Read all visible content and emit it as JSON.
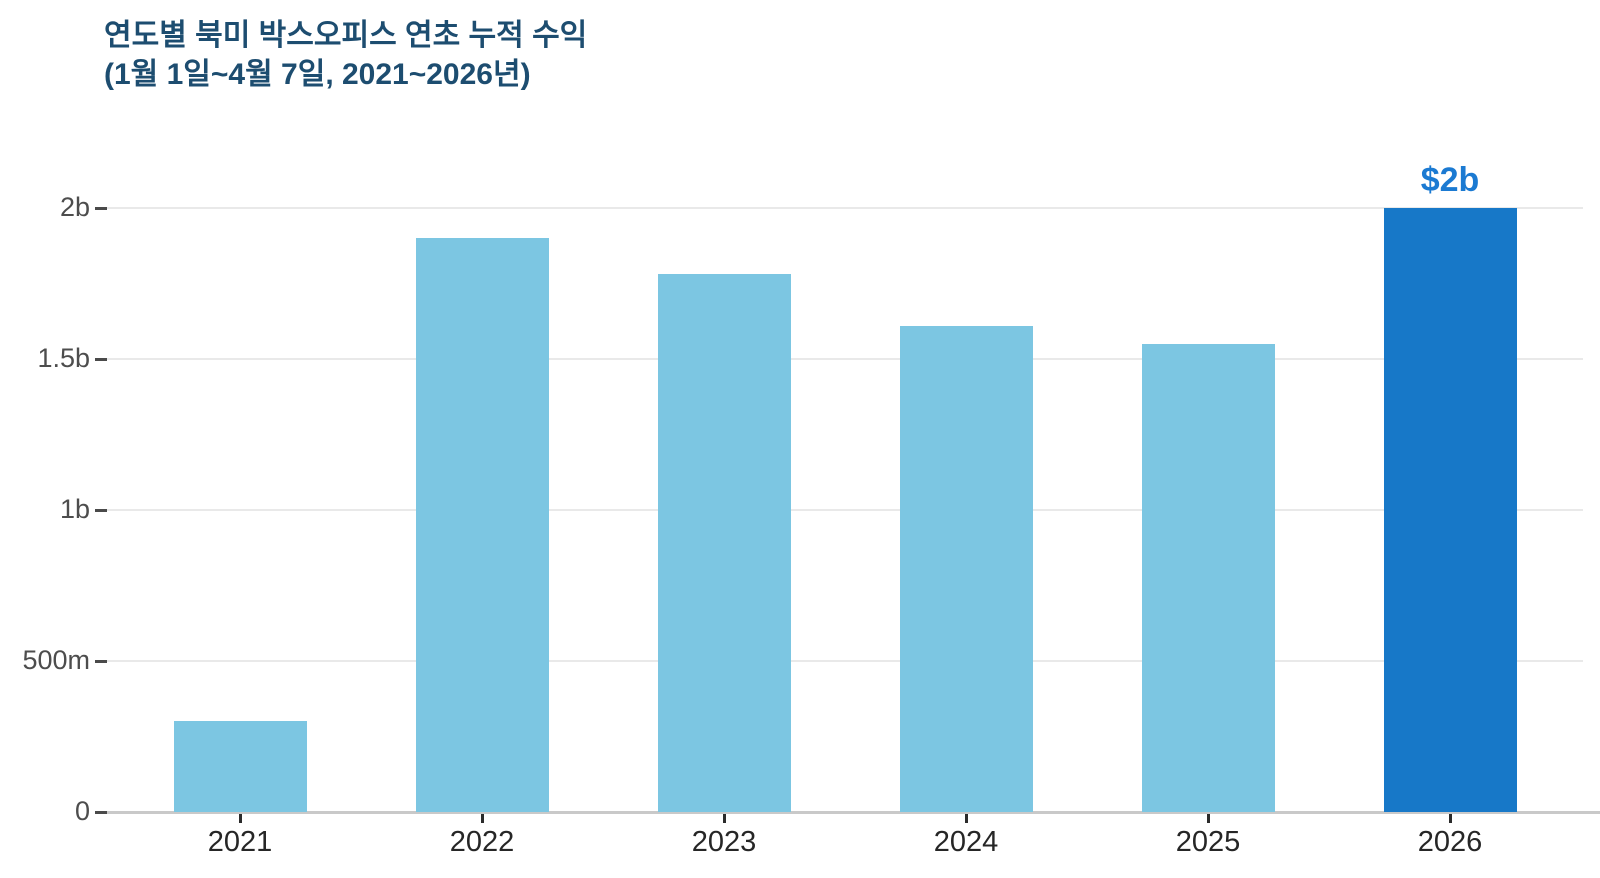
{
  "header": {
    "title_line1": "연도별 북미 박스오피스 연초 누적 수익",
    "title_line2": "(1월 1일~4월 7일, 2021~2026년)"
  },
  "chart_data": {
    "type": "bar",
    "title": "연도별 북미 박스오피스 연초 누적 수익 (1월 1일~4월 7일, 2021~2026년)",
    "categories": [
      "2021",
      "2022",
      "2023",
      "2024",
      "2025",
      "2026"
    ],
    "values": [
      0.3,
      1.9,
      1.78,
      1.61,
      1.55,
      2.0
    ],
    "values_unit": "billions USD",
    "xlabel": "",
    "ylabel": "",
    "ylim": [
      0,
      2.1
    ],
    "yticks": [
      {
        "value": 0,
        "label": "0"
      },
      {
        "value": 0.5,
        "label": "500m"
      },
      {
        "value": 1.0,
        "label": "1b"
      },
      {
        "value": 1.5,
        "label": "1.5b"
      },
      {
        "value": 2.0,
        "label": "2b"
      }
    ],
    "grid": "horizontal",
    "legend": "none",
    "highlight_index": 5,
    "annotations": [
      {
        "bar_index": 5,
        "text": "$2b"
      }
    ],
    "colors": {
      "bar_default": "#7cc6e2",
      "bar_highlight": "#1778c8",
      "annotation_text": "#1b7ad2",
      "title_text": "#1d4d70"
    }
  }
}
